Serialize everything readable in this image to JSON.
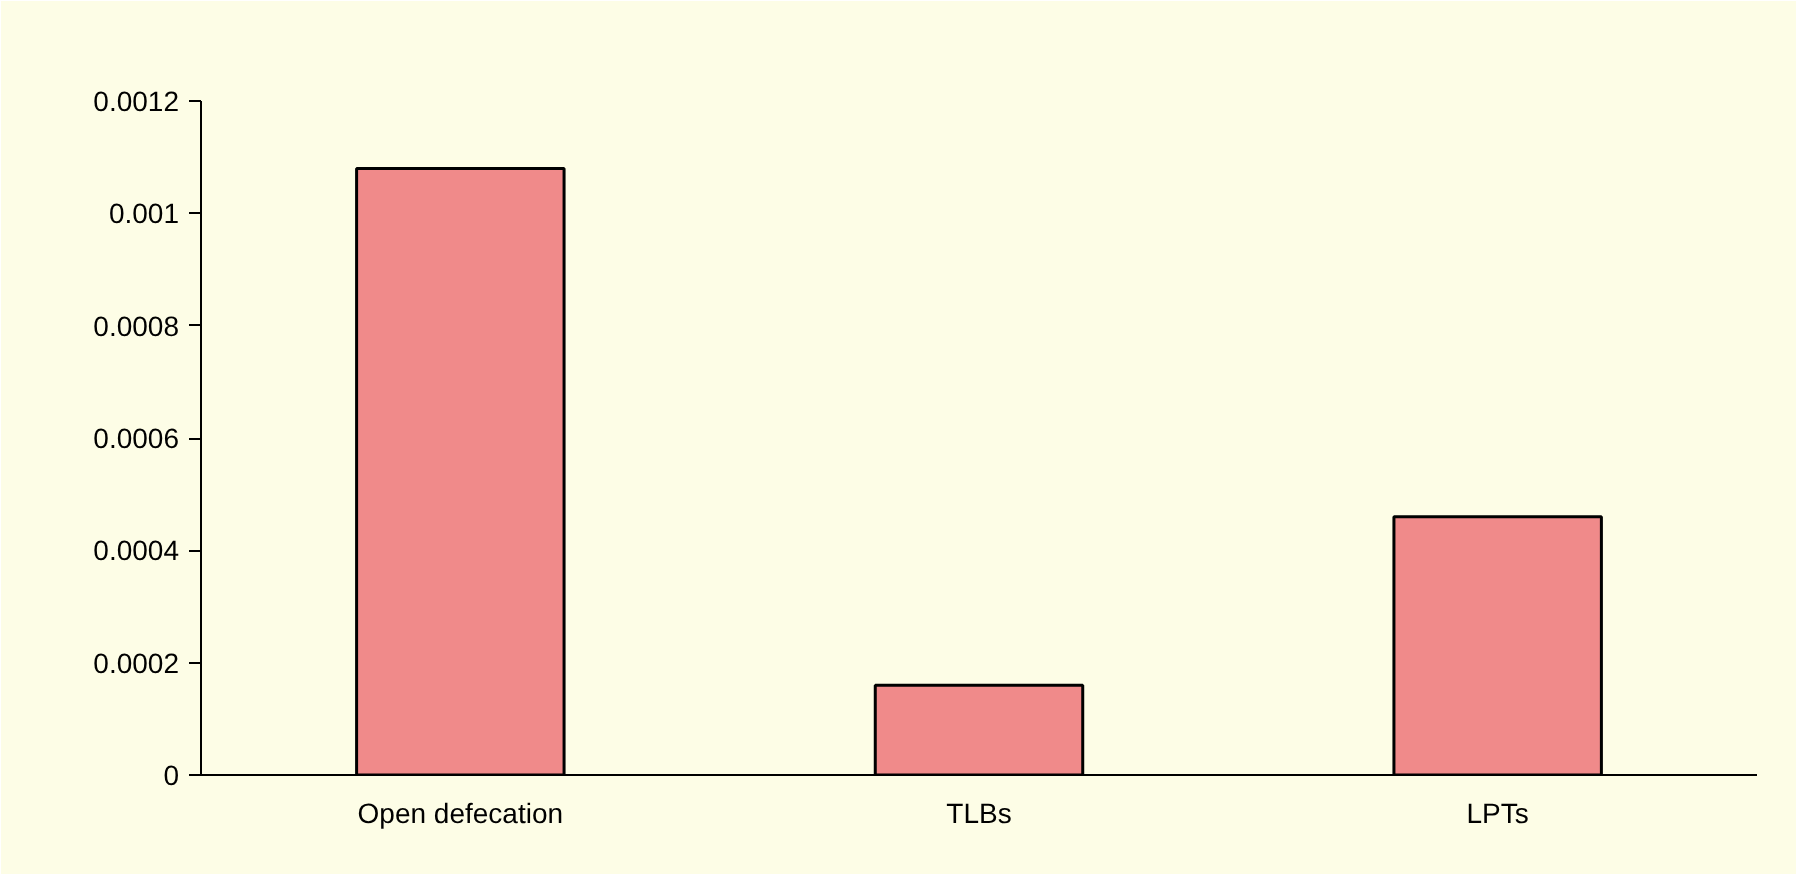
{
  "chart_data": {
    "type": "bar",
    "categories": [
      "Open defecation",
      "TLBs",
      "LPTs"
    ],
    "values": [
      0.00108,
      0.00016,
      0.00046
    ],
    "color": "#f08a8a",
    "ylim": [
      0,
      0.0012
    ],
    "yticks": [
      0,
      0.0002,
      0.0004,
      0.0006,
      0.0008,
      0.001,
      0.0012
    ],
    "grid": false
  }
}
